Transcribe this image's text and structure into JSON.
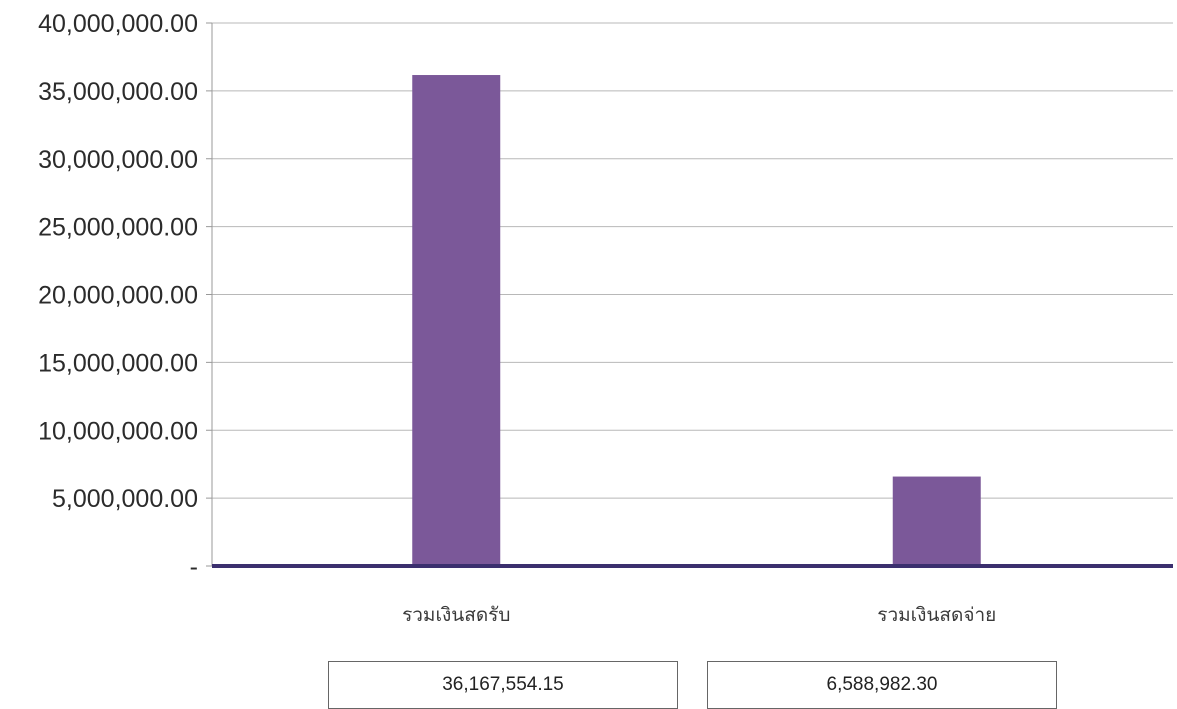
{
  "chart_data": {
    "type": "bar",
    "title": "",
    "xlabel": "",
    "ylabel": "",
    "categories": [
      "รวมเงินสดรับ",
      "รวมเงินสดจ่าย"
    ],
    "values": [
      36167554.15,
      6588982.3
    ],
    "value_labels": [
      "36,167,554.15",
      "6,588,982.30"
    ],
    "ylim": [
      0,
      40000000
    ],
    "yticks": [
      0,
      5000000,
      10000000,
      15000000,
      20000000,
      25000000,
      30000000,
      35000000,
      40000000
    ],
    "ytick_labels": [
      "-",
      "5,000,000.00",
      "10,000,000.00",
      "15,000,000.00",
      "20,000,000.00",
      "25,000,000.00",
      "30,000,000.00",
      "35,000,000.00",
      "40,000,000.00"
    ],
    "grid": true,
    "legend": "none",
    "bar_color": "#7b5899",
    "baseline_color": "#3b2f6e",
    "grid_color": "#b8b8b8"
  }
}
